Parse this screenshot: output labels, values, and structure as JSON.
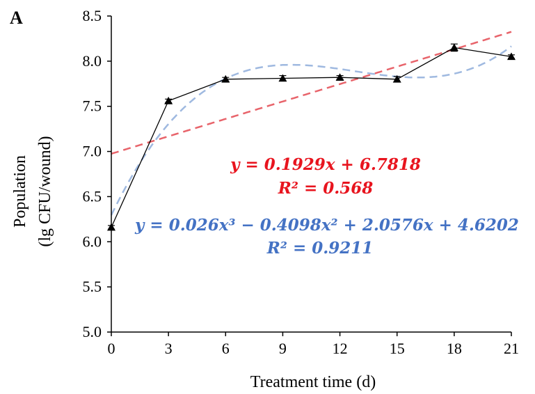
{
  "chart_data": {
    "type": "line",
    "panel_label": "A",
    "xlabel": "Treatment time (d)",
    "ylabel_lines": [
      "Population",
      "(lg CFU/wound)"
    ],
    "x": [
      0,
      3,
      6,
      9,
      12,
      15,
      18,
      21
    ],
    "xticks": [
      "0",
      "3",
      "6",
      "9",
      "12",
      "15",
      "18",
      "21"
    ],
    "yticks": [
      "5.0",
      "5.5",
      "6.0",
      "6.5",
      "7.0",
      "7.5",
      "8.0",
      "8.5"
    ],
    "ylim": [
      5.0,
      8.5
    ],
    "grid": false,
    "series": [
      {
        "values": [
          6.16,
          7.56,
          7.8,
          7.81,
          7.82,
          7.8,
          8.15,
          8.05
        ],
        "errors": [
          0.02,
          0.02,
          0.02,
          0.03,
          0.02,
          0.03,
          0.04,
          0.02
        ],
        "color": "#000000",
        "marker": "triangle"
      }
    ],
    "trendlines": [
      {
        "kind": "linear",
        "coefficients": [
          0.1929,
          6.7818
        ],
        "color": "#e8646b",
        "equation": "y = 0.1929x + 6.7818",
        "r2": "R² = 0.568"
      },
      {
        "kind": "cubic",
        "coefficients": [
          0.026,
          -0.4098,
          2.0576,
          4.6202
        ],
        "color": "#9fb9e0",
        "equation": "y = 0.026x³ − 0.4098x² + 2.0576x + 4.6202",
        "r2": "R² = 0.9211"
      }
    ],
    "label_colors": {
      "linear": "#e8141e",
      "cubic": "#4472c4"
    }
  }
}
